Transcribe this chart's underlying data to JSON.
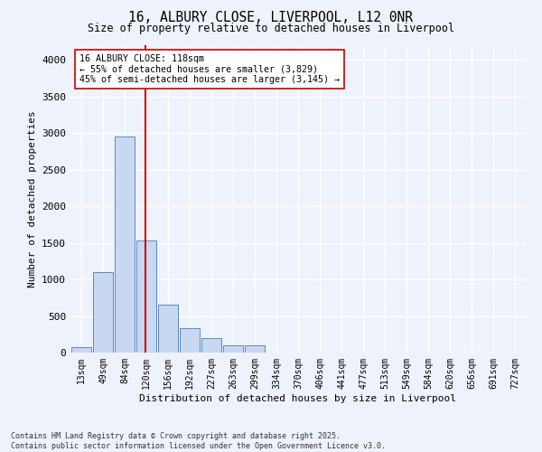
{
  "title": "16, ALBURY CLOSE, LIVERPOOL, L12 0NR",
  "subtitle": "Size of property relative to detached houses in Liverpool",
  "xlabel": "Distribution of detached houses by size in Liverpool",
  "ylabel": "Number of detached properties",
  "bin_labels": [
    "13sqm",
    "49sqm",
    "84sqm",
    "120sqm",
    "156sqm",
    "192sqm",
    "227sqm",
    "263sqm",
    "299sqm",
    "334sqm",
    "370sqm",
    "406sqm",
    "441sqm",
    "477sqm",
    "513sqm",
    "549sqm",
    "584sqm",
    "620sqm",
    "656sqm",
    "691sqm",
    "727sqm"
  ],
  "bar_values": [
    70,
    1100,
    2950,
    1530,
    650,
    330,
    200,
    100,
    100,
    5,
    5,
    5,
    5,
    5,
    5,
    5,
    5,
    5,
    5,
    5,
    5
  ],
  "bar_color": "#c8d8f0",
  "bar_edge_color": "#5b8ac5",
  "property_label": "16 ALBURY CLOSE: 118sqm",
  "annotation_line1": "← 55% of detached houses are smaller (3,829)",
  "annotation_line2": "45% of semi-detached houses are larger (3,145) →",
  "vline_color": "#cc0000",
  "annotation_box_color": "#ffffff",
  "annotation_box_edge": "#cc0000",
  "ylim": [
    0,
    4200
  ],
  "yticks": [
    0,
    500,
    1000,
    1500,
    2000,
    2500,
    3000,
    3500,
    4000
  ],
  "background_color": "#eef2fb",
  "grid_color": "#ffffff",
  "footer_line1": "Contains HM Land Registry data © Crown copyright and database right 2025.",
  "footer_line2": "Contains public sector information licensed under the Open Government Licence v3.0."
}
